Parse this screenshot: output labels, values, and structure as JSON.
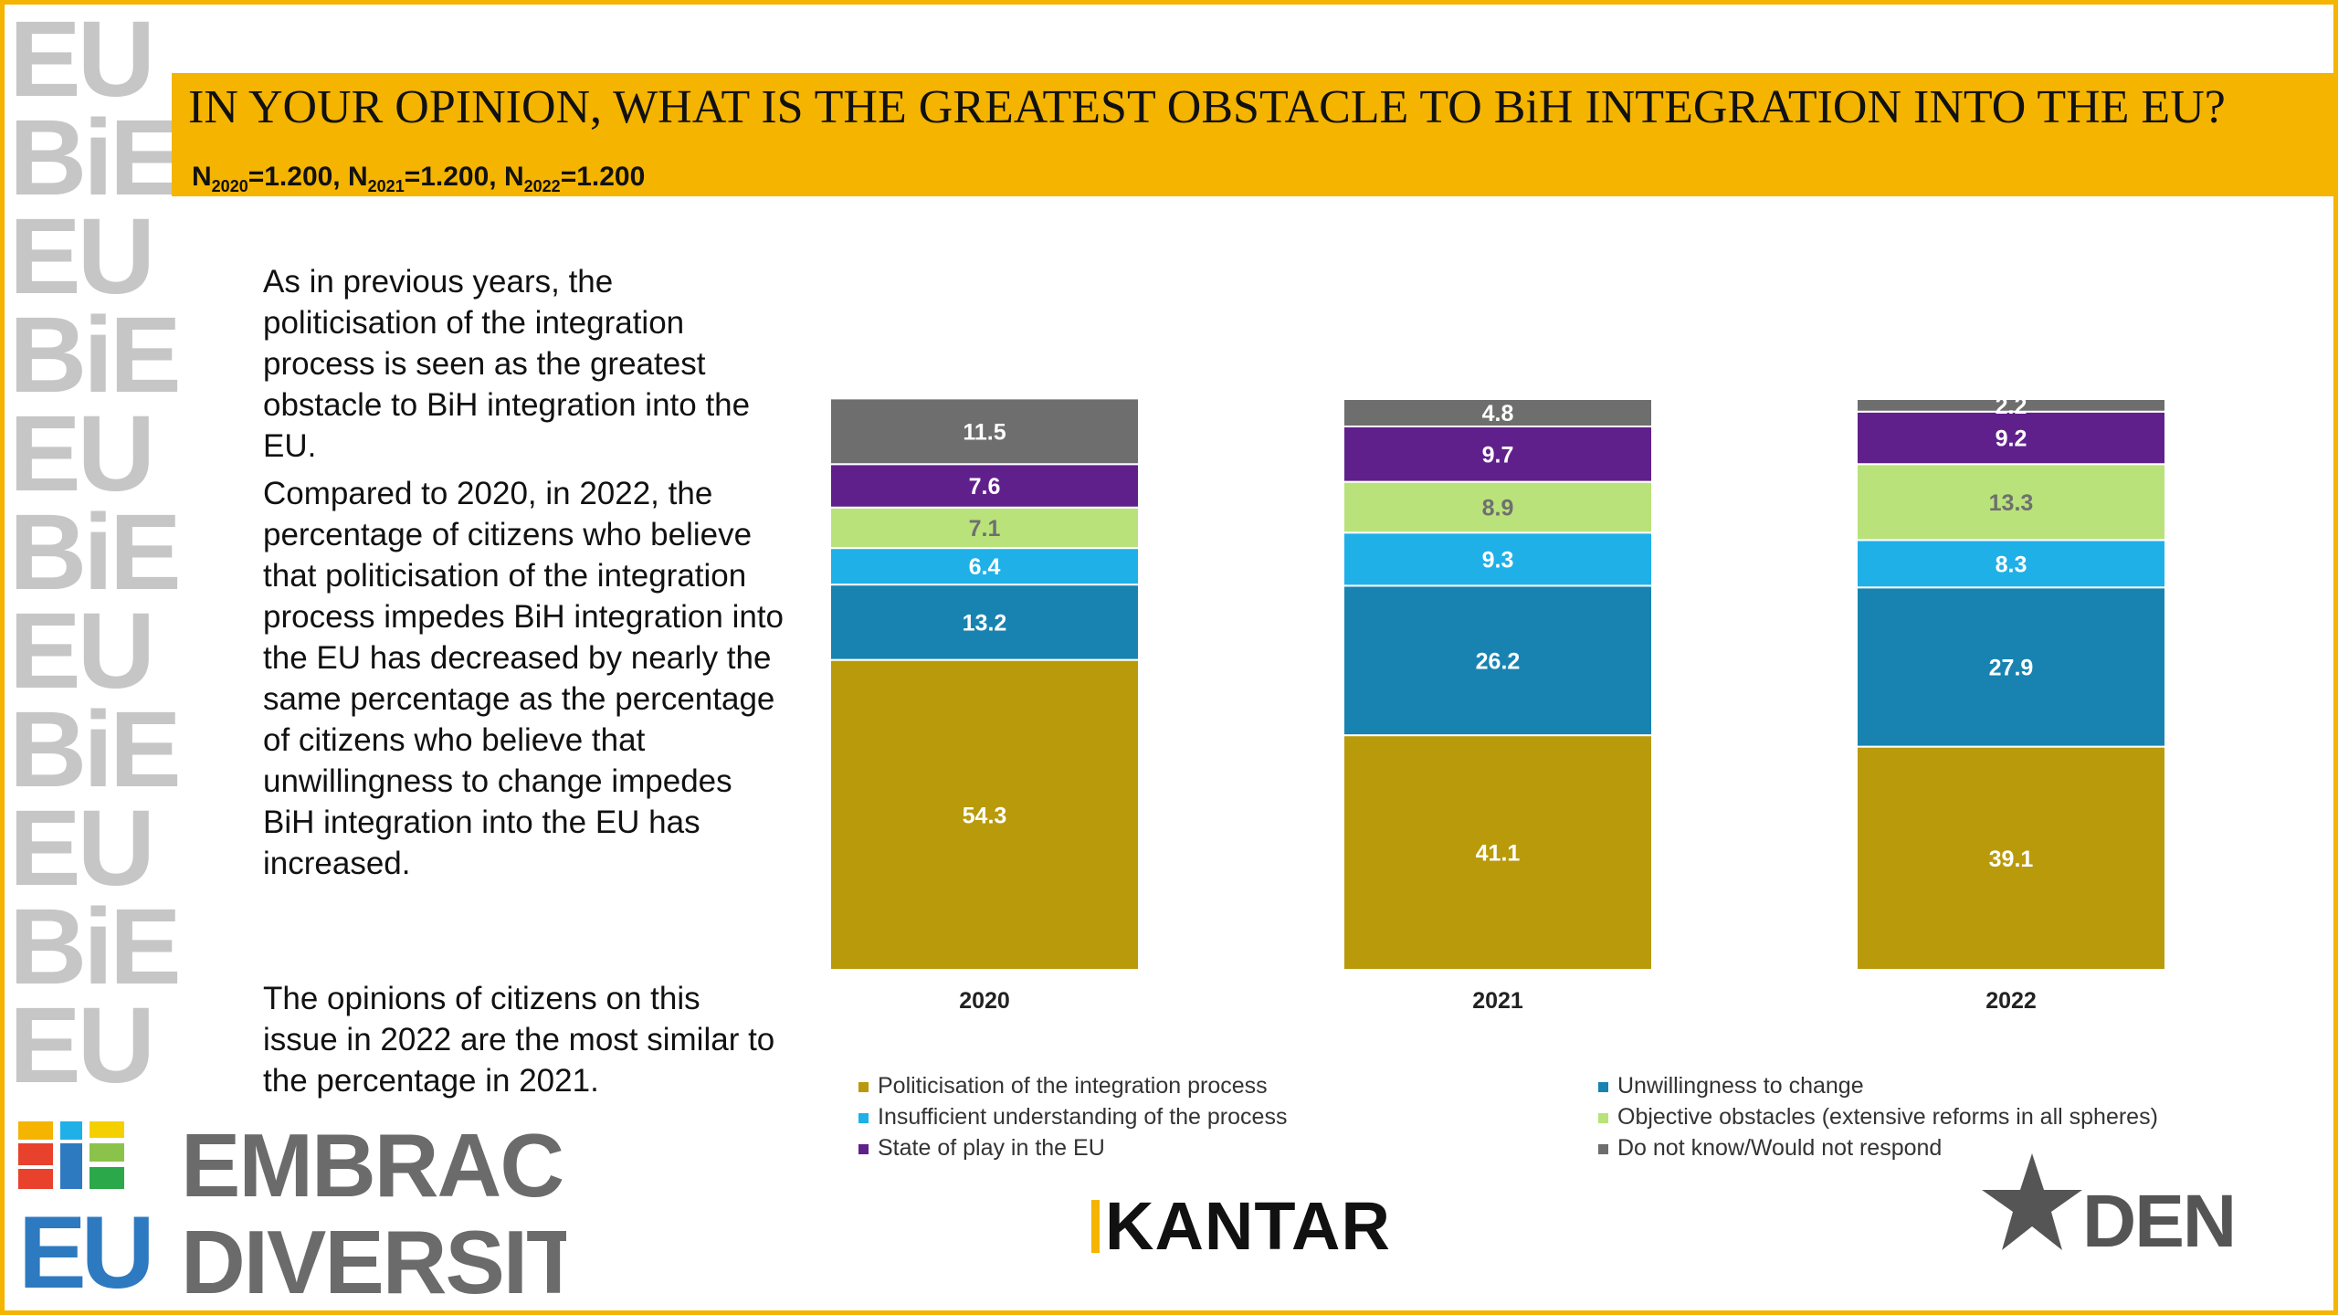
{
  "title": "IN YOUR OPINION, WHAT IS THE GREATEST OBSTACLE TO BiH INTEGRATION INTO THE EU?",
  "sample_size": {
    "parts": [
      {
        "n": "N",
        "sub": "2020",
        "val": "=1.200, "
      },
      {
        "n": "N",
        "sub": "2021",
        "val": "=1.200, "
      },
      {
        "n": "N",
        "sub": "2022",
        "val": "=1.200"
      }
    ]
  },
  "text": {
    "paragraph_1": "As in previous years, the politicisation of the integration process is seen as the greatest obstacle to BiH integration into the EU.",
    "paragraph_2": "Compared to 2020, in 2022, the percentage of citizens who believe that politicisation of the integration process impedes BiH integration into the EU has decreased by nearly the same percentage as the percentage of citizens who believe that unwillingness to change impedes BiH integration into the EU has increased.",
    "paragraph_3": "The opinions of citizens on this issue in 2022 are the most similar to the percentage in 2021."
  },
  "chart_data": {
    "type": "bar",
    "stacked": true,
    "categories": [
      "2020",
      "2021",
      "2022"
    ],
    "series": [
      {
        "name": "Politicisation of the integration process",
        "color": "#B99A0A",
        "label_color": "#ffffff",
        "values": [
          54.3,
          41.1,
          39.1
        ]
      },
      {
        "name": "Unwillingness to change",
        "color": "#1883B0",
        "label_color": "#ffffff",
        "values": [
          13.2,
          26.2,
          27.9
        ]
      },
      {
        "name": "Insufficient understanding of the process",
        "color": "#1FB0E8",
        "label_color": "#ffffff",
        "values": [
          6.4,
          9.3,
          8.3
        ]
      },
      {
        "name": "Objective obstacles (extensive reforms in all spheres)",
        "color": "#B9E27A",
        "label_color": "#6f6f6f",
        "values": [
          7.1,
          8.9,
          13.3
        ]
      },
      {
        "name": "State of play in the EU",
        "color": "#60208C",
        "label_color": "#ffffff",
        "values": [
          7.6,
          9.7,
          9.2
        ]
      },
      {
        "name": "Do not know/Would not respond",
        "color": "#6E6E6E",
        "label_color": "#ffffff",
        "values": [
          11.5,
          4.8,
          2.2
        ]
      }
    ],
    "ylim": [
      0,
      100
    ],
    "legend_position": "bottom",
    "grid": false
  },
  "logos": {
    "embrace_line1": "EMBRACE",
    "embrace_line2": "DIVERSITY",
    "embrace_mark_top": "BiE",
    "embrace_mark_bottom": "EU",
    "kantar": "KANTAR",
    "den": "DEN"
  },
  "strip": [
    "EU",
    "BiE",
    "EU",
    "BiE",
    "EU",
    "BiE",
    "EU",
    "BiE",
    "EU",
    "BiE",
    "EU"
  ]
}
